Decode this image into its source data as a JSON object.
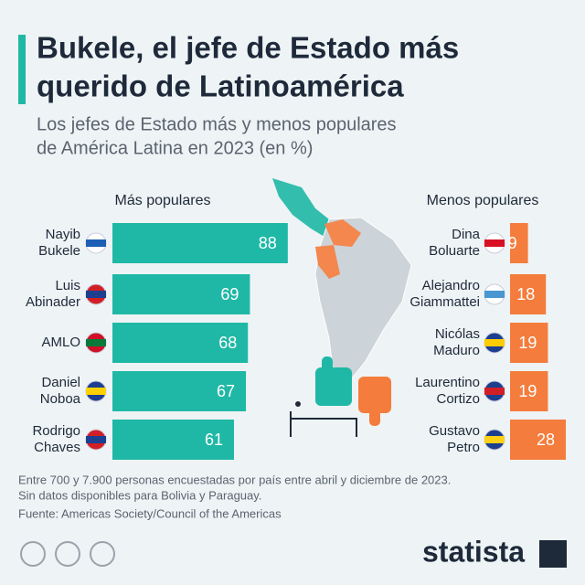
{
  "header": {
    "title": [
      "Bukele, el jefe de Estado más",
      "querido de Latinoamérica"
    ],
    "subtitle": [
      "Los jefes de Estado más y menos populares",
      "de América Latina en 2023 (en %)"
    ]
  },
  "chart_data": [
    {
      "type": "bar",
      "orientation": "horizontal",
      "title": "Más populares",
      "categories": [
        "Nayib Bukele",
        "Luis Abinader",
        "AMLO",
        "Daniel Noboa",
        "Rodrigo Chaves"
      ],
      "values": [
        88,
        69,
        68,
        67,
        61
      ],
      "color": "#1fb8a6"
    },
    {
      "type": "bar",
      "orientation": "horizontal",
      "title": "Menos populares",
      "categories": [
        "Dina Boluarte",
        "Alejandro Giammattei",
        "Nicólas Maduro",
        "Laurentino Cortizo",
        "Gustavo Petro"
      ],
      "values": [
        9,
        18,
        19,
        19,
        28
      ],
      "color": "#f47c3c"
    }
  ],
  "footer": {
    "notes": [
      "Entre 700 y 7.900 personas encuestadas por país entre abril y diciembre de 2023.",
      "Sin datos disponibles para Bolivia y Paraguay."
    ],
    "source": "Fuente: Americas Society/Council of the Americas",
    "brand": "statista"
  }
}
